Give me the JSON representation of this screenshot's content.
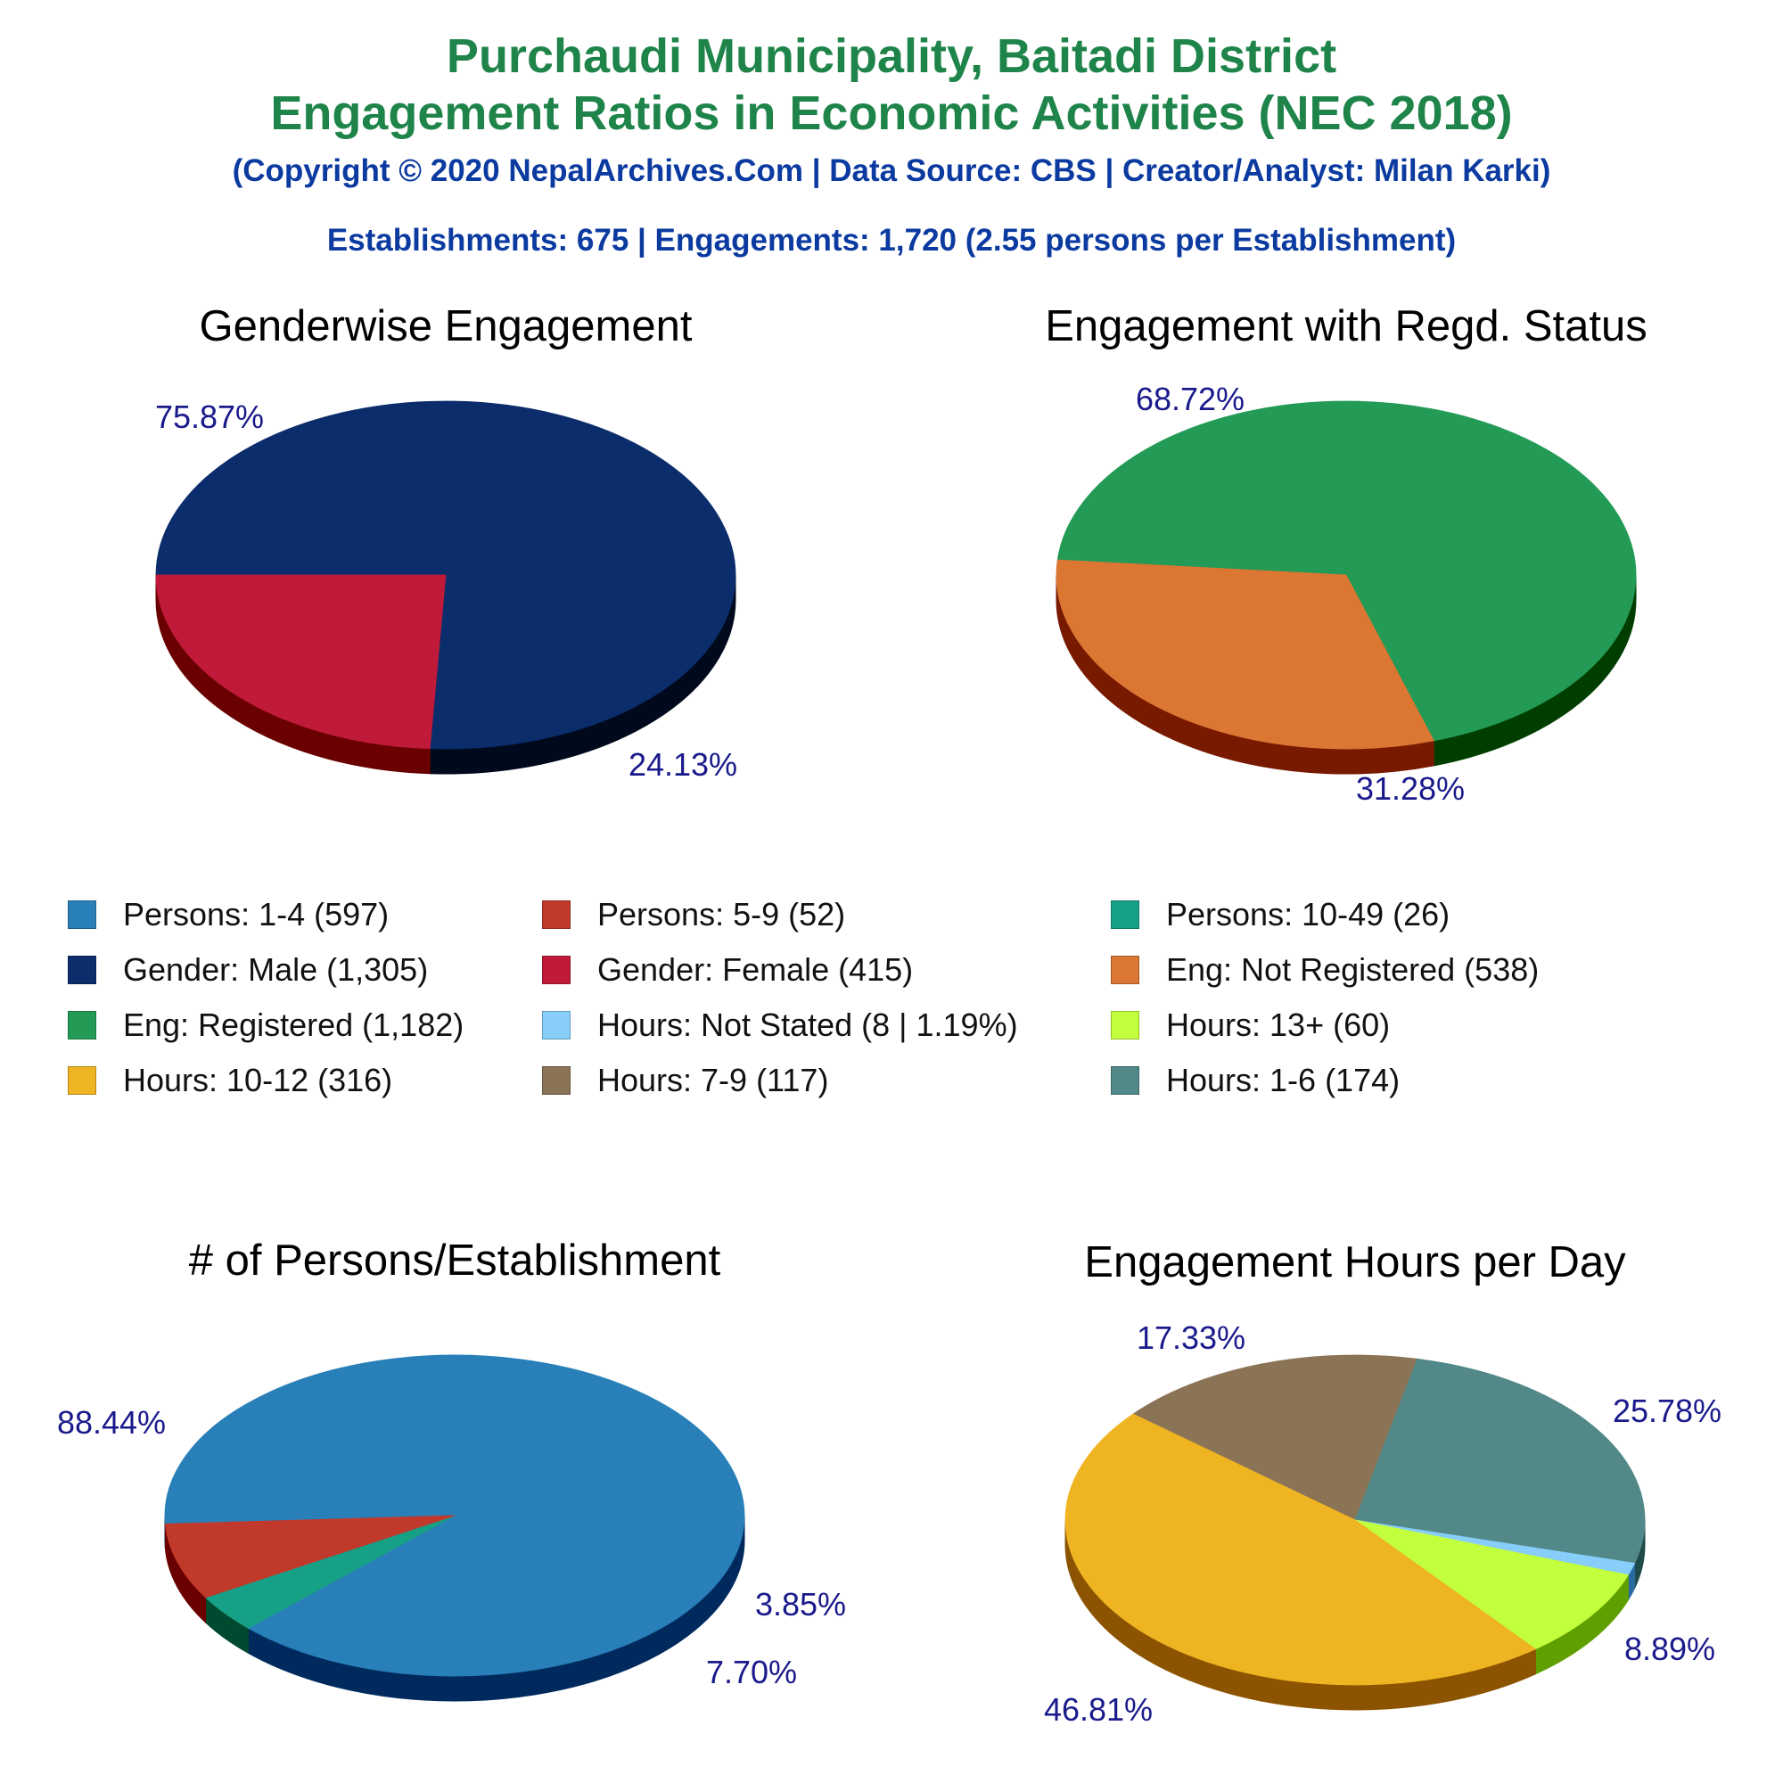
{
  "header": {
    "title_line1": "Purchaudi Municipality, Baitadi District",
    "title_line2": "Engagement Ratios in Economic Activities (NEC 2018)",
    "copyright": "(Copyright © 2020 NepalArchives.Com | Data Source: CBS | Creator/Analyst: Milan Karki)",
    "summary": "Establishments: 675 | Engagements: 1,720 (2.55 persons per Establishment)"
  },
  "chart_data": [
    {
      "type": "pie",
      "title": "Genderwise Engagement",
      "start_deg": 180,
      "slices": [
        {
          "name": "Gender: Male",
          "value": 75.87,
          "label": "75.87%",
          "color": "#0b2d6b",
          "side": "#000a1c"
        },
        {
          "name": "Gender: Female",
          "value": 24.13,
          "label": "24.13%",
          "color": "#c01a3a",
          "side": "#6a0000"
        }
      ]
    },
    {
      "type": "pie",
      "title": "Engagement with Regd. Status",
      "start_deg": 175,
      "slices": [
        {
          "name": "Eng: Registered",
          "value": 68.72,
          "label": "68.72%",
          "color": "#239a55",
          "side": "#003e00"
        },
        {
          "name": "Eng: Not Registered",
          "value": 31.28,
          "label": "31.28%",
          "color": "#dc7633",
          "side": "#781a00"
        }
      ]
    },
    {
      "type": "pie",
      "title": "# of Persons/Establishment",
      "start_deg": 183,
      "slices": [
        {
          "name": "Persons: 1-4",
          "value": 88.44,
          "label": "88.44%",
          "color": "#2980b9",
          "side": "#002a5e"
        },
        {
          "name": "Persons: 10-49",
          "value": 3.85,
          "label": "3.85%",
          "color": "#16a085",
          "side": "#004a30"
        },
        {
          "name": "Persons: 5-9",
          "value": 7.7,
          "label": "7.70%",
          "color": "#c0392b",
          "side": "#6a0000"
        }
      ]
    },
    {
      "type": "pie",
      "title": "Engagement Hours per Day",
      "start_deg": 140,
      "slices": [
        {
          "name": "Hours: 7-9",
          "value": 17.33,
          "label": "17.33%",
          "color": "#8b7355",
          "side": "#4a3010"
        },
        {
          "name": "Hours: 1-6",
          "value": 25.78,
          "label": "25.78%",
          "color": "#528888",
          "side": "#1e4a4a"
        },
        {
          "name": "Hours: Not Stated",
          "value": 1.19,
          "label": "",
          "color": "#87cefa",
          "side": "#2a6aa0"
        },
        {
          "name": "Hours: 13+",
          "value": 8.89,
          "label": "8.89%",
          "color": "#c2ff3d",
          "side": "#5fa000"
        },
        {
          "name": "Hours: 10-12",
          "value": 46.81,
          "label": "46.81%",
          "color": "#eeb422",
          "side": "#8c5400"
        }
      ]
    }
  ],
  "legend": [
    [
      {
        "label": "Persons: 1-4 (597)",
        "color": "#2980b9"
      },
      {
        "label": "Persons: 5-9 (52)",
        "color": "#c0392b"
      },
      {
        "label": "Persons: 10-49 (26)",
        "color": "#16a085"
      }
    ],
    [
      {
        "label": "Gender: Male (1,305)",
        "color": "#0b2d6b"
      },
      {
        "label": "Gender: Female (415)",
        "color": "#c01a3a"
      },
      {
        "label": "Eng: Not Registered (538)",
        "color": "#dc7633"
      }
    ],
    [
      {
        "label": "Eng: Registered (1,182)",
        "color": "#239a55"
      },
      {
        "label": "Hours: Not Stated (8 | 1.19%)",
        "color": "#87cefa"
      },
      {
        "label": "Hours: 13+ (60)",
        "color": "#c2ff3d"
      }
    ],
    [
      {
        "label": "Hours: 10-12 (316)",
        "color": "#eeb422"
      },
      {
        "label": "Hours: 7-9 (117)",
        "color": "#8b7355"
      },
      {
        "label": "Hours: 1-6 (174)",
        "color": "#528888"
      }
    ]
  ]
}
